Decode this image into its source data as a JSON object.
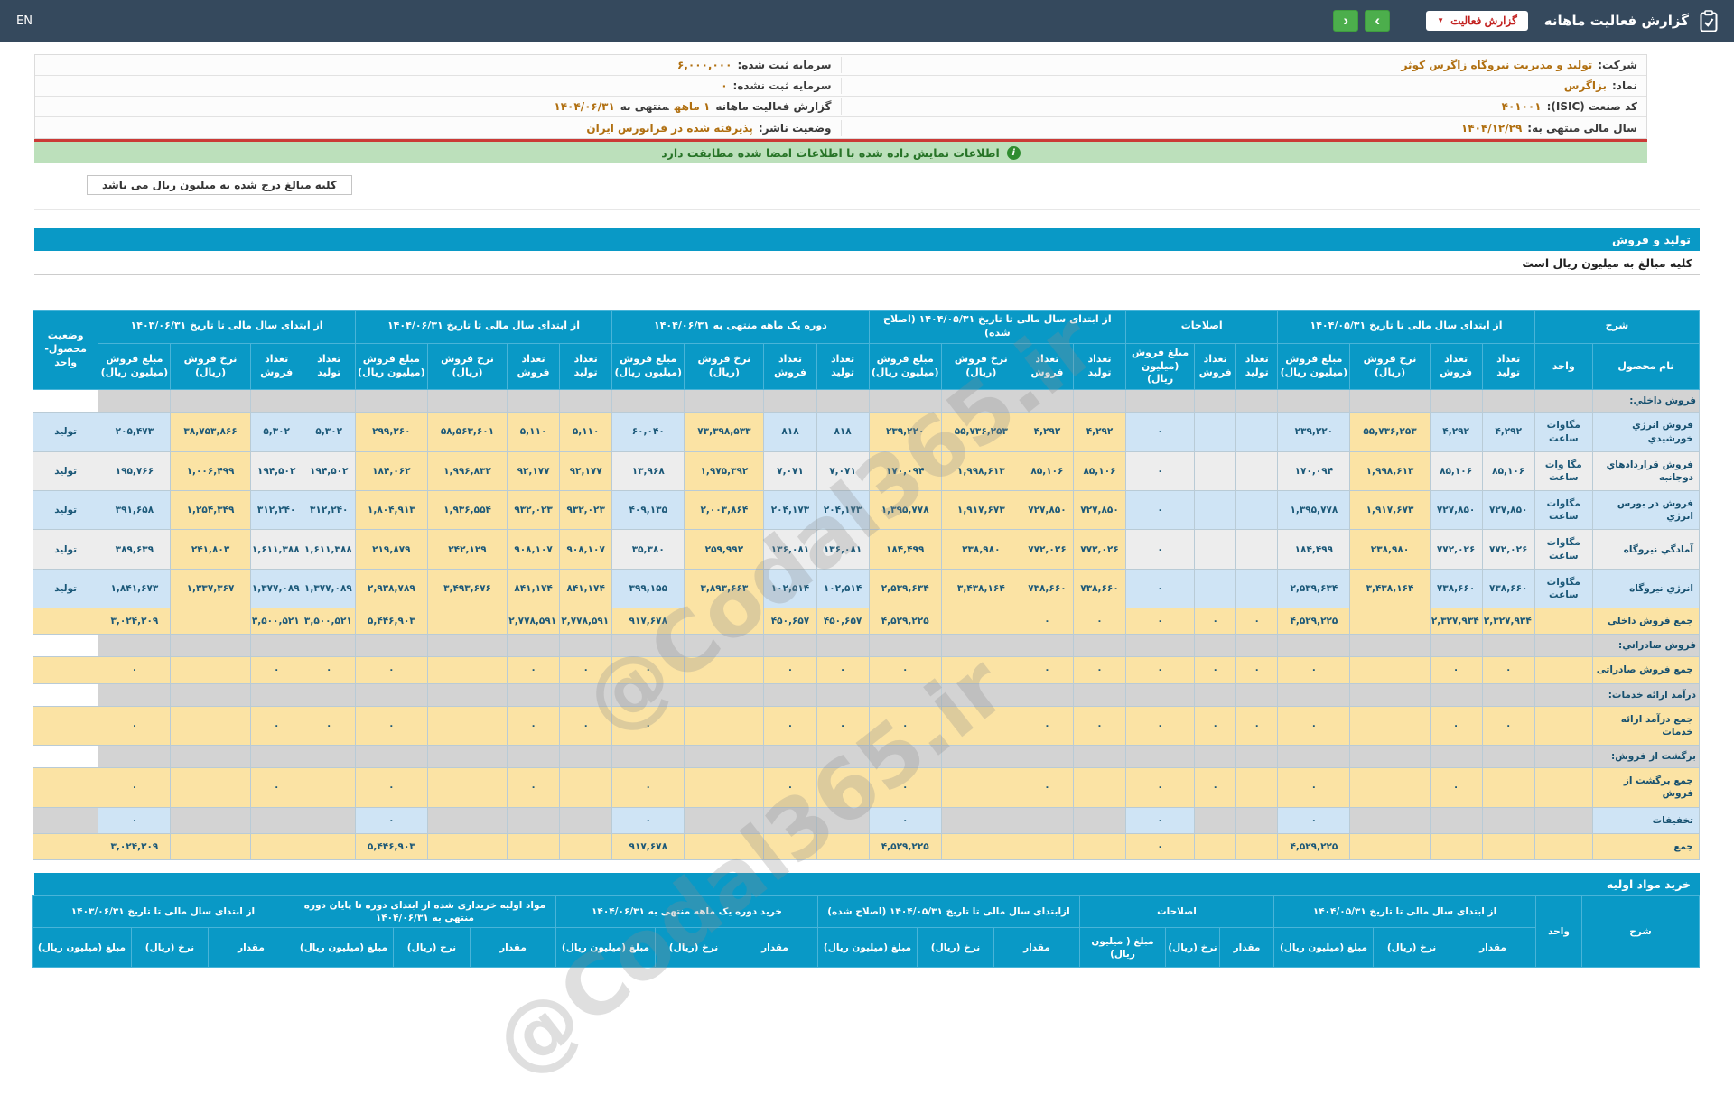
{
  "topbar": {
    "title": "گزارش فعالیت ماهانه",
    "dropdown_label": "گزارش فعالیت",
    "nav_next": "›",
    "nav_prev": "‹",
    "lang_label": "EN"
  },
  "company_info": {
    "rows": [
      {
        "right": [
          {
            "t": "شرکت:",
            "b": 1
          },
          {
            "t": "تولید و مدیریت نیروگاه زاگرس کوثر",
            "hl": 1
          }
        ],
        "left": [
          {
            "t": "سرمایه ثبت شده:",
            "b": 1
          },
          {
            "t": "۶,۰۰۰,۰۰۰",
            "hl": 1
          }
        ]
      },
      {
        "right": [
          {
            "t": "نماد:",
            "b": 1
          },
          {
            "t": "بزاگرس",
            "hl": 1
          }
        ],
        "left": [
          {
            "t": "سرمایه ثبت نشده:",
            "b": 1
          },
          {
            "t": "۰",
            "hl": 1
          }
        ]
      },
      {
        "right": [
          {
            "t": "کد صنعت (ISIC):",
            "b": 1
          },
          {
            "t": "۴۰۱۰۰۱",
            "hl": 1
          }
        ],
        "left": [
          {
            "t": "گزارش فعالیت ماهانه",
            "b": 1
          },
          {
            "t": "۱ ماهه",
            "hl": 1
          },
          {
            "t": "منتهی به",
            "b": 1
          },
          {
            "t": "۱۴۰۴/۰۶/۳۱",
            "hl": 1
          }
        ]
      },
      {
        "right": [
          {
            "t": "سال مالی منتهی به:",
            "b": 1
          },
          {
            "t": "۱۴۰۴/۱۲/۲۹",
            "hl": 1
          }
        ],
        "left": [
          {
            "t": "وضعیت ناشر:",
            "b": 1
          },
          {
            "t": "پذیرفته شده در فرابورس ایران",
            "hl": 1
          }
        ]
      }
    ]
  },
  "notice_text": "اطلاعات نمایش داده شده با اطلاعات امضا شده مطابقت دارد",
  "note_box": "کلیه مبالغ درج شده به میلیون ریال می باشد",
  "watermark": "@Codal365.ir",
  "sales": {
    "bar_title": "تولید و فروش",
    "subtitle": "کلیه مبالغ به میلیون ریال است",
    "header": {
      "desc": "شرح",
      "name": "نام محصول",
      "unit": "واحد",
      "status": "وضعیت محصول-واحد",
      "groups": [
        {
          "label": "از ابتدای سال مالی تا تاریخ ۱۴۰۴/۰۵/۳۱",
          "cols": [
            "تعداد تولید",
            "تعداد فروش",
            "نرخ فروش (ریال)",
            "مبلغ فروش (میلیون ریال)"
          ]
        },
        {
          "label": "اصلاحات",
          "cols": [
            "تعداد تولید",
            "تعداد فروش",
            "مبلغ فروش (میلیون ریال)"
          ]
        },
        {
          "label": "از ابتدای سال مالی تا تاریخ ۱۴۰۴/۰۵/۳۱ (اصلاح شده)",
          "cols": [
            "تعداد تولید",
            "تعداد فروش",
            "نرخ فروش (ریال)",
            "مبلغ فروش (میلیون ریال)"
          ]
        },
        {
          "label": "دوره یک ماهه منتهی به ۱۴۰۴/۰۶/۳۱",
          "cols": [
            "تعداد تولید",
            "تعداد فروش",
            "نرخ فروش (ریال)",
            "مبلغ فروش (میلیون ریال)"
          ]
        },
        {
          "label": "از ابتدای سال مالی تا تاریخ ۱۴۰۴/۰۶/۳۱",
          "cols": [
            "تعداد تولید",
            "تعداد فروش",
            "نرخ فروش (ریال)",
            "مبلغ فروش (میلیون ریال)"
          ]
        },
        {
          "label": "از ابتدای سال مالی تا تاریخ ۱۴۰۳/۰۶/۳۱",
          "cols": [
            "تعداد تولید",
            "تعداد فروش",
            "نرخ فروش (ریال)",
            "مبلغ فروش (میلیون ریال)"
          ]
        }
      ]
    },
    "rows": [
      {
        "type": "section",
        "label": "فروش داخلي:"
      },
      {
        "type": "product",
        "name": "فروش انرژي خورشيدي",
        "unit": "مگاوات ساعت",
        "status": "تولید",
        "cells": [
          "۴,۲۹۲",
          "۴,۲۹۲",
          "۵۵,۷۳۶,۲۵۳",
          "۲۳۹,۲۲۰",
          "",
          "",
          "۰",
          "۴,۲۹۲",
          "۴,۲۹۲",
          "۵۵,۷۳۶,۲۵۳",
          "۲۳۹,۲۲۰",
          "۸۱۸",
          "۸۱۸",
          "۷۳,۳۹۸,۵۳۳",
          "۶۰,۰۴۰",
          "۵,۱۱۰",
          "۵,۱۱۰",
          "۵۸,۵۶۳,۶۰۱",
          "۲۹۹,۲۶۰",
          "۵,۳۰۲",
          "۵,۳۰۲",
          "۳۸,۷۵۳,۸۶۶",
          "۲۰۵,۴۷۳"
        ]
      },
      {
        "type": "product",
        "name": "فروش قراردادهاي دوجانبه",
        "unit": "مگا وات ساعت",
        "status": "تولید",
        "cells": [
          "۸۵,۱۰۶",
          "۸۵,۱۰۶",
          "۱,۹۹۸,۶۱۳",
          "۱۷۰,۰۹۴",
          "",
          "",
          "۰",
          "۸۵,۱۰۶",
          "۸۵,۱۰۶",
          "۱,۹۹۸,۶۱۳",
          "۱۷۰,۰۹۴",
          "۷,۰۷۱",
          "۷,۰۷۱",
          "۱,۹۷۵,۳۹۲",
          "۱۳,۹۶۸",
          "۹۲,۱۷۷",
          "۹۲,۱۷۷",
          "۱,۹۹۶,۸۳۲",
          "۱۸۴,۰۶۲",
          "۱۹۴,۵۰۲",
          "۱۹۴,۵۰۲",
          "۱,۰۰۶,۴۹۹",
          "۱۹۵,۷۶۶"
        ]
      },
      {
        "type": "product",
        "name": "فروش در بورس انرژي",
        "unit": "مگاوات ساعت",
        "status": "تولید",
        "cells": [
          "۷۲۷,۸۵۰",
          "۷۲۷,۸۵۰",
          "۱,۹۱۷,۶۷۳",
          "۱,۳۹۵,۷۷۸",
          "",
          "",
          "۰",
          "۷۲۷,۸۵۰",
          "۷۲۷,۸۵۰",
          "۱,۹۱۷,۶۷۳",
          "۱,۳۹۵,۷۷۸",
          "۲۰۴,۱۷۳",
          "۲۰۴,۱۷۳",
          "۲,۰۰۳,۸۶۴",
          "۴۰۹,۱۳۵",
          "۹۳۲,۰۲۳",
          "۹۳۲,۰۲۳",
          "۱,۹۳۶,۵۵۴",
          "۱,۸۰۴,۹۱۳",
          "۳۱۲,۲۴۰",
          "۳۱۲,۲۴۰",
          "۱,۲۵۴,۳۴۹",
          "۳۹۱,۶۵۸"
        ]
      },
      {
        "type": "product",
        "name": "آمادگي نيروگاه",
        "unit": "مگاوات ساعت",
        "status": "تولید",
        "cells": [
          "۷۷۲,۰۲۶",
          "۷۷۲,۰۲۶",
          "۲۳۸,۹۸۰",
          "۱۸۴,۴۹۹",
          "",
          "",
          "۰",
          "۷۷۲,۰۲۶",
          "۷۷۲,۰۲۶",
          "۲۳۸,۹۸۰",
          "۱۸۴,۴۹۹",
          "۱۳۶,۰۸۱",
          "۱۳۶,۰۸۱",
          "۲۵۹,۹۹۲",
          "۳۵,۳۸۰",
          "۹۰۸,۱۰۷",
          "۹۰۸,۱۰۷",
          "۲۴۲,۱۲۹",
          "۲۱۹,۸۷۹",
          "۱,۶۱۱,۳۸۸",
          "۱,۶۱۱,۳۸۸",
          "۲۴۱,۸۰۳",
          "۳۸۹,۶۳۹"
        ]
      },
      {
        "type": "product",
        "name": "انرژي نيروگاه",
        "unit": "مگاوات ساعت",
        "status": "تولید",
        "cells": [
          "۷۳۸,۶۶۰",
          "۷۳۸,۶۶۰",
          "۳,۴۳۸,۱۶۴",
          "۲,۵۳۹,۶۳۴",
          "",
          "",
          "۰",
          "۷۳۸,۶۶۰",
          "۷۳۸,۶۶۰",
          "۳,۴۳۸,۱۶۴",
          "۲,۵۳۹,۶۳۴",
          "۱۰۲,۵۱۴",
          "۱۰۲,۵۱۴",
          "۳,۸۹۳,۶۶۳",
          "۳۹۹,۱۵۵",
          "۸۴۱,۱۷۴",
          "۸۴۱,۱۷۴",
          "۳,۴۹۳,۶۷۶",
          "۲,۹۳۸,۷۸۹",
          "۱,۳۷۷,۰۸۹",
          "۱,۳۷۷,۰۸۹",
          "۱,۳۳۷,۳۶۷",
          "۱,۸۴۱,۶۷۳"
        ]
      },
      {
        "type": "total",
        "label": "جمع فروش داخلی",
        "cells": [
          "۲,۳۲۷,۹۳۴",
          "۲,۳۲۷,۹۳۴",
          "",
          "۴,۵۲۹,۲۲۵",
          "۰",
          "۰",
          "۰",
          "۰",
          "۰",
          "",
          "۴,۵۲۹,۲۲۵",
          "۴۵۰,۶۵۷",
          "۴۵۰,۶۵۷",
          "",
          "۹۱۷,۶۷۸",
          "۲,۷۷۸,۵۹۱",
          "۲,۷۷۸,۵۹۱",
          "",
          "۵,۴۴۶,۹۰۳",
          "۳,۵۰۰,۵۲۱",
          "۳,۵۰۰,۵۲۱",
          "",
          "۳,۰۲۴,۲۰۹"
        ]
      },
      {
        "type": "section",
        "label": "فروش صادراتي:"
      },
      {
        "type": "total",
        "label": "جمع فروش صادراتی",
        "cells": [
          "۰",
          "۰",
          "",
          "۰",
          "۰",
          "۰",
          "۰",
          "۰",
          "۰",
          "",
          "۰",
          "۰",
          "۰",
          "",
          "۰",
          "۰",
          "۰",
          "",
          "۰",
          "۰",
          "۰",
          "",
          "۰"
        ]
      },
      {
        "type": "section",
        "label": "درآمد ارائه خدمات:"
      },
      {
        "type": "total",
        "label": "جمع درآمد ارائه خدمات",
        "cells": [
          "۰",
          "۰",
          "",
          "۰",
          "۰",
          "۰",
          "۰",
          "۰",
          "۰",
          "",
          "۰",
          "۰",
          "۰",
          "",
          "۰",
          "۰",
          "۰",
          "",
          "۰",
          "۰",
          "۰",
          "",
          "۰"
        ]
      },
      {
        "type": "section",
        "label": "برگشت از فروش:"
      },
      {
        "type": "total",
        "label": "جمع برگشت از فروش",
        "cells": [
          "",
          "۰",
          "",
          "۰",
          "",
          "۰",
          "۰",
          "",
          "۰",
          "",
          "۰",
          "",
          "۰",
          "",
          "۰",
          "",
          "۰",
          "",
          "۰",
          "",
          "۰",
          "",
          "۰"
        ]
      },
      {
        "type": "discount",
        "label": "تخفیفات",
        "cells": [
          "",
          "",
          "",
          "۰",
          "",
          "",
          "۰",
          "",
          "",
          "",
          "۰",
          "",
          "",
          "",
          "۰",
          "",
          "",
          "",
          "۰",
          "",
          "",
          "",
          "۰"
        ]
      },
      {
        "type": "total",
        "label": "جمع",
        "cells": [
          "",
          "",
          "",
          "۴,۵۲۹,۲۲۵",
          "",
          "",
          "۰",
          "",
          "",
          "",
          "۴,۵۲۹,۲۲۵",
          "",
          "",
          "",
          "۹۱۷,۶۷۸",
          "",
          "",
          "",
          "۵,۴۴۶,۹۰۳",
          "",
          "",
          "",
          "۳,۰۲۴,۲۰۹"
        ]
      }
    ]
  },
  "purchase": {
    "bar_title": "خرید مواد اولیه",
    "header": {
      "desc": "شرح",
      "unit": "واحد",
      "groups": [
        {
          "label": "از ابتدای سال مالی تا تاریخ ۱۴۰۴/۰۵/۳۱",
          "cols": [
            "مقدار",
            "نرخ (ریال)",
            "مبلغ (میلیون ریال)"
          ]
        },
        {
          "label": "اصلاحات",
          "cols": [
            "مقدار",
            "نرخ (ریال)",
            "مبلغ ( میلیون ریال)"
          ]
        },
        {
          "label": "ازابتدای سال مالی تا تاریخ ۱۴۰۴/۰۵/۳۱ (اصلاح شده)",
          "cols": [
            "مقدار",
            "نرخ (ریال)",
            "مبلغ (میلیون ریال)"
          ]
        },
        {
          "label": "خرید دوره یک ماهه منتهی به ۱۴۰۴/۰۶/۳۱",
          "cols": [
            "مقدار",
            "نرخ (ریال)",
            "مبلغ (میلیون ریال)"
          ]
        },
        {
          "label": "مواد اولیه خریداری شده از ابتدای دوره تا پایان دوره منتهی به ۱۴۰۴/۰۶/۳۱",
          "cols": [
            "مقدار",
            "نرخ (ریال)",
            "مبلغ (میلیون ریال)"
          ]
        },
        {
          "label": "از ابتدای سال مالی تا تاریخ ۱۴۰۳/۰۶/۳۱",
          "cols": [
            "مقدار",
            "نرخ (ریال)",
            "مبلغ (میلیون ریال)"
          ]
        }
      ]
    }
  }
}
